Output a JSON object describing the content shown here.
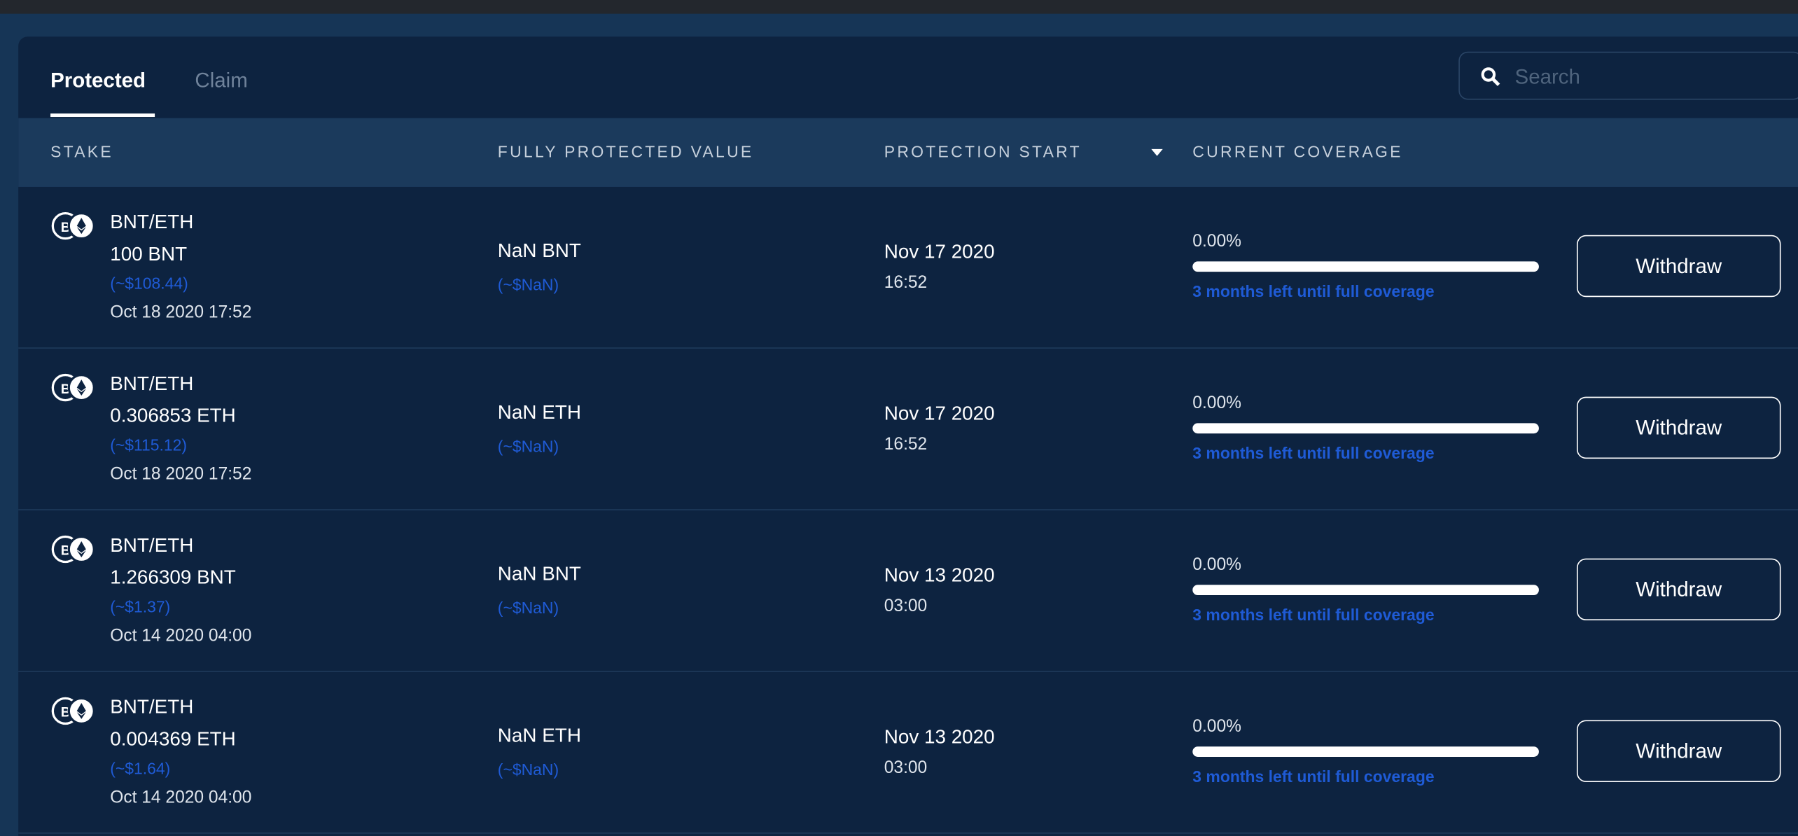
{
  "tabs": [
    "Protected",
    "Claim"
  ],
  "search": {
    "placeholder": "Search"
  },
  "table": {
    "columns": [
      "STAKE",
      "FULLY PROTECTED VALUE",
      "PROTECTION START",
      "CURRENT COVERAGE"
    ],
    "rows": [
      {
        "pair": "BNT/ETH",
        "amount": "100 BNT",
        "amount_usd": "(~$108.44)",
        "date": "Oct 18 2020 17:52",
        "value": "NaN BNT",
        "value_usd": "(~$NaN)",
        "start_date": "Nov 17 2020",
        "start_time": "16:52",
        "coverage": "0.00%",
        "coverage_note": "3 months left until full coverage",
        "action": "Withdraw"
      },
      {
        "pair": "BNT/ETH",
        "amount": "0.306853 ETH",
        "amount_usd": "(~$115.12)",
        "date": "Oct 18 2020 17:52",
        "value": "NaN ETH",
        "value_usd": "(~$NaN)",
        "start_date": "Nov 17 2020",
        "start_time": "16:52",
        "coverage": "0.00%",
        "coverage_note": "3 months left until full coverage",
        "action": "Withdraw"
      },
      {
        "pair": "BNT/ETH",
        "amount": "1.266309 BNT",
        "amount_usd": "(~$1.37)",
        "date": "Oct 14 2020 04:00",
        "value": "NaN BNT",
        "value_usd": "(~$NaN)",
        "start_date": "Nov 13 2020",
        "start_time": "03:00",
        "coverage": "0.00%",
        "coverage_note": "3 months left until full coverage",
        "action": "Withdraw"
      },
      {
        "pair": "BNT/ETH",
        "amount": "0.004369 ETH",
        "amount_usd": "(~$1.64)",
        "date": "Oct 14 2020 04:00",
        "value": "NaN ETH",
        "value_usd": "(~$NaN)",
        "start_date": "Nov 13 2020",
        "start_time": "03:00",
        "coverage": "0.00%",
        "coverage_note": "3 months left until full coverage",
        "action": "Withdraw"
      }
    ]
  }
}
